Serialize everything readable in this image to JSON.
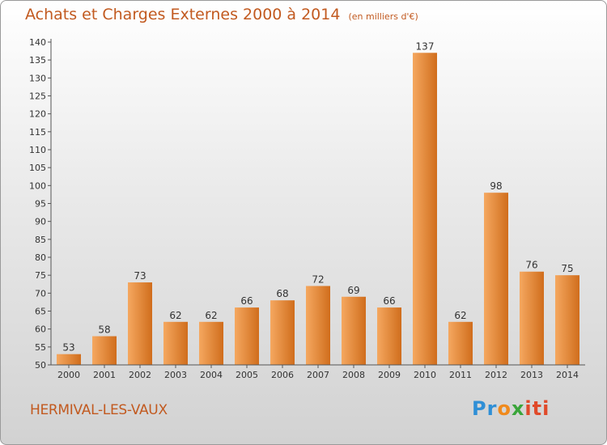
{
  "title": "Achats et Charges Externes 2000 à 2014",
  "unit": "(en milliers d'€)",
  "commune": "HERMIVAL-LES-VAUX",
  "logo": {
    "p1": "Pr",
    "p2": "o",
    "p3": "x",
    "p4": "iti"
  },
  "colors": {
    "bar_light": "#f5a860",
    "bar_dark": "#d06d1c",
    "text": "#c25a20",
    "axis": "#555555"
  },
  "chart_data": {
    "type": "bar",
    "categories": [
      "2000",
      "2001",
      "2002",
      "2003",
      "2004",
      "2005",
      "2006",
      "2007",
      "2008",
      "2009",
      "2010",
      "2011",
      "2012",
      "2013",
      "2014"
    ],
    "values": [
      53,
      58,
      73,
      62,
      62,
      66,
      68,
      72,
      69,
      66,
      137,
      62,
      98,
      76,
      75
    ],
    "ylim": [
      50,
      140
    ],
    "yticks": [
      50,
      55,
      60,
      65,
      70,
      75,
      80,
      85,
      90,
      95,
      100,
      105,
      110,
      115,
      120,
      125,
      130,
      135,
      140
    ],
    "grid": false,
    "xlabel": "",
    "ylabel": ""
  }
}
